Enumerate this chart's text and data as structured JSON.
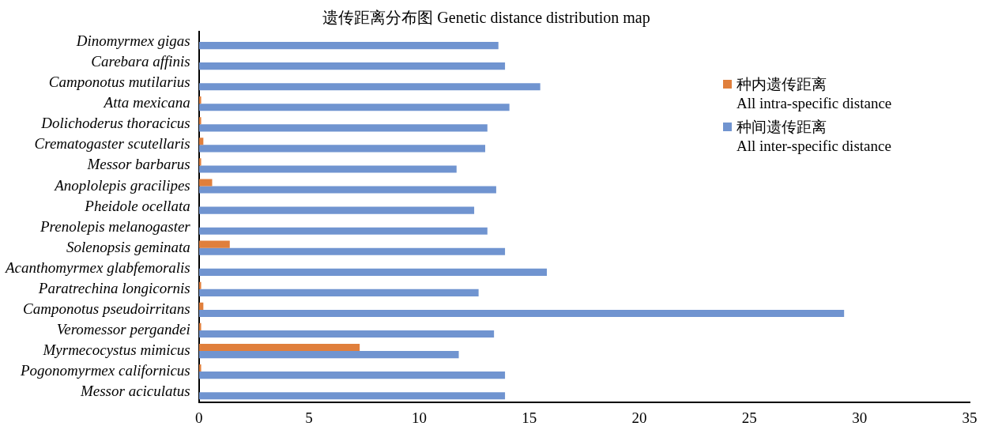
{
  "chart_data": {
    "type": "bar",
    "orientation": "horizontal",
    "title": "遗传距离分布图 Genetic distance distribution map",
    "categories": [
      "Dinomyrmex gigas",
      "Carebara affinis",
      "Camponotus mutilarius",
      "Atta mexicana",
      "Dolichoderus thoracicus",
      "Crematogaster scutellaris",
      "Messor barbarus",
      "Anoplolepis gracilipes",
      "Pheidole ocellata",
      "Prenolepis melanogaster",
      "Solenopsis geminata",
      "Acanthomyrmex glabfemoralis",
      "Paratrechina longicornis",
      "Camponotus pseudoirritans",
      "Veromessor pergandei",
      "Myrmecocystus mimicus",
      "Pogonomyrmex californicus",
      "Messor aciculatus"
    ],
    "series": [
      {
        "name": "种内遗传距离\nAll intra-specific distance",
        "color": "#e07f3c",
        "values": [
          0,
          0,
          0,
          0.1,
          0.1,
          0.2,
          0.1,
          0.6,
          0,
          0,
          1.4,
          0,
          0.1,
          0.2,
          0.1,
          7.3,
          0.1,
          0
        ]
      },
      {
        "name": "种间遗传距离\nAll inter-specific distance",
        "color": "#7094d0",
        "values": [
          13.6,
          13.9,
          15.5,
          14.1,
          13.1,
          13.0,
          11.7,
          13.5,
          12.5,
          13.1,
          13.9,
          15.8,
          12.7,
          29.3,
          13.4,
          11.8,
          13.9,
          13.9
        ]
      }
    ],
    "xlim": [
      0,
      35
    ],
    "xticks": [
      0,
      5,
      10,
      15,
      20,
      25,
      30,
      35
    ],
    "grid": false,
    "legend": "right"
  }
}
